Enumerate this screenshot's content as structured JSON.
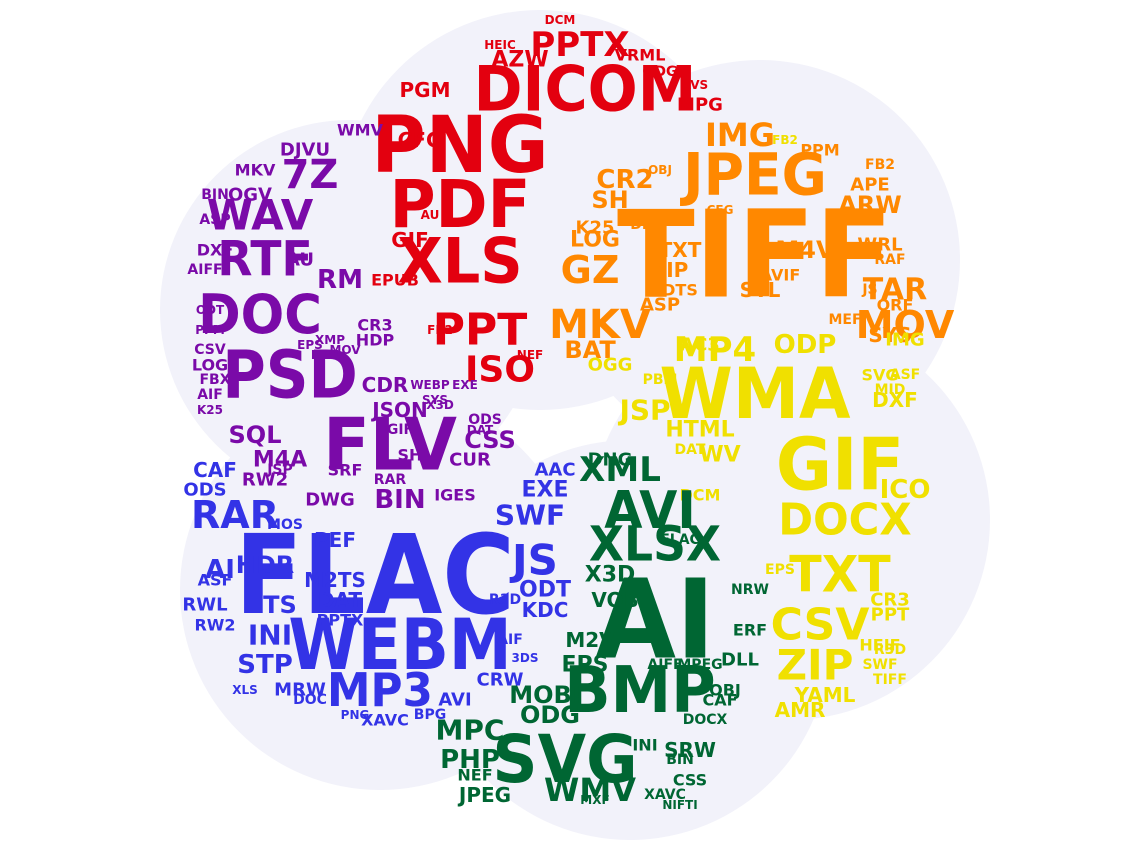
{
  "colors": {
    "red": "#e3000f",
    "orange": "#ff8800",
    "yellow": "#f0e000",
    "green": "#006633",
    "blue": "#3333e6",
    "purple": "#7a0aa8",
    "backdrop": "#f2f2fa"
  },
  "petals": [
    {
      "name": "red",
      "words": [
        "PNG",
        "DICOM",
        "PDF",
        "XLS",
        "PPTX",
        "PPT",
        "ISO",
        "AZW",
        "PGM",
        "CFG",
        "HEIC",
        "DCM",
        "VRML",
        "ODG",
        "MPG",
        "AVS",
        "NEF",
        "EPUB",
        "GIF",
        "AU",
        "FB2",
        "CR2"
      ]
    },
    {
      "name": "orange",
      "words": [
        "TIFF",
        "JPEG",
        "IMG",
        "MOV",
        "TAR",
        "GZ",
        "LOG",
        "MKV",
        "CR2",
        "SH",
        "K25",
        "ARW",
        "APE",
        "M4V",
        "ZIP",
        "TXT",
        "DTS",
        "STL",
        "PPM",
        "RAF",
        "ORF",
        "SYS",
        "AVIF",
        "WRL",
        "FB2",
        "MEF",
        "BAT",
        "OBJ",
        "ASP",
        "JS",
        "DLL",
        "CFG"
      ]
    },
    {
      "name": "yellow",
      "words": [
        "WMA",
        "GIF",
        "DOCX",
        "TXT",
        "CSV",
        "ZIP",
        "MP4",
        "JSP",
        "ODP",
        "HTML",
        "YAML",
        "CR3",
        "AMR",
        "PPT",
        "IMG",
        "ICO",
        "DXF",
        "SVG",
        "ASF",
        "MID",
        "HEIF",
        "R3D",
        "SWF",
        "TIFF",
        "FB2",
        "WV",
        "DCM",
        "EPS",
        "AC3",
        "OGG",
        "PBM",
        "DAT"
      ]
    },
    {
      "name": "green",
      "words": [
        "AI",
        "BMP",
        "SVG",
        "AVI",
        "XLSX",
        "WMV",
        "XML",
        "DNG",
        "X3D",
        "VOB",
        "M2V",
        "EPS",
        "ODG",
        "MOBI",
        "MPC",
        "PHP",
        "NEF",
        "JPEG",
        "SRW",
        "DLL",
        "OBJ",
        "AIFF",
        "MPEG",
        "FLAC",
        "NRW",
        "ERF",
        "CAF",
        "INI",
        "CSS",
        "BIN",
        "XAVC",
        "DOCX",
        "NIFTI",
        "MXF"
      ]
    },
    {
      "name": "blue",
      "words": [
        "FLAC",
        "WEBM",
        "MP3",
        "JS",
        "RAR",
        "SWF",
        "EXE",
        "AAC",
        "ODT",
        "KDC",
        "INI",
        "STP",
        "AI",
        "HDR",
        "TS",
        "PEF",
        "M2TS",
        "DAT",
        "PPTX",
        "CAF",
        "ODS",
        "RWL",
        "ASF",
        "RW2",
        "MRW",
        "DOC",
        "CRW",
        "AVI",
        "XAVC",
        "BPG",
        "AIF",
        "3DS",
        "R3D",
        "MOS",
        "PNG",
        "XLS"
      ]
    },
    {
      "name": "purple",
      "words": [
        "PSD",
        "FLV",
        "DOC",
        "RTF",
        "WAV",
        "7Z",
        "DJVU",
        "MKV",
        "OGV",
        "AU",
        "RM",
        "SQL",
        "JSON",
        "CDR",
        "CUR",
        "BIN",
        "CSS",
        "DWG",
        "IGES",
        "ASP",
        "DXF",
        "BIN",
        "AIFF",
        "ODT",
        "HDP",
        "CR3",
        "GIF",
        "SH",
        "X3D",
        "RAR",
        "M4A",
        "RW2",
        "SRF",
        "JSP",
        "LOG",
        "PPM",
        "CSV",
        "FBX",
        "AIF",
        "K25",
        "WMV",
        "XMP",
        "EPS",
        "MOV",
        "MEF",
        "ODS",
        "DAT",
        "SYS",
        "EXE",
        "WEBP"
      ]
    }
  ]
}
